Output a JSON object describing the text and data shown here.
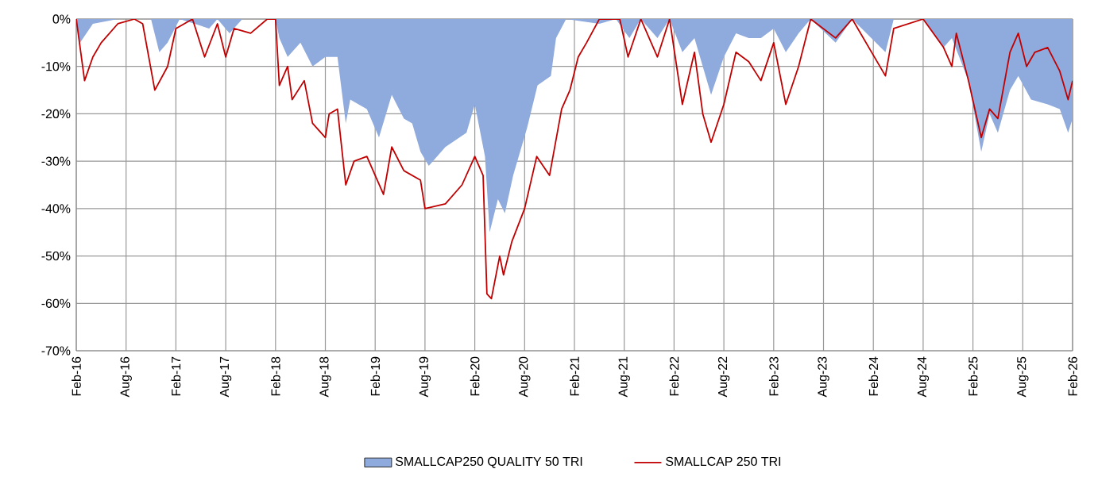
{
  "chart_data": {
    "type": "line",
    "xlim": [
      "2016-02",
      "2026-02"
    ],
    "ylim": [
      -70,
      0
    ],
    "xticks": [
      {
        "value": "2016-02",
        "label": "Feb-16"
      },
      {
        "value": "2016-08",
        "label": "Aug-16"
      },
      {
        "value": "2017-02",
        "label": "Feb-17"
      },
      {
        "value": "2017-08",
        "label": "Aug-17"
      },
      {
        "value": "2018-02",
        "label": "Feb-18"
      },
      {
        "value": "2018-08",
        "label": "Aug-18"
      },
      {
        "value": "2019-02",
        "label": "Feb-19"
      },
      {
        "value": "2019-08",
        "label": "Aug-19"
      },
      {
        "value": "2020-02",
        "label": "Feb-20"
      },
      {
        "value": "2020-08",
        "label": "Aug-20"
      },
      {
        "value": "2021-02",
        "label": "Feb-21"
      },
      {
        "value": "2021-08",
        "label": "Aug-21"
      },
      {
        "value": "2022-02",
        "label": "Feb-22"
      },
      {
        "value": "2022-08",
        "label": "Aug-22"
      },
      {
        "value": "2023-02",
        "label": "Feb-23"
      },
      {
        "value": "2023-08",
        "label": "Aug-23"
      },
      {
        "value": "2024-02",
        "label": "Feb-24"
      },
      {
        "value": "2024-08",
        "label": "Aug-24"
      },
      {
        "value": "2025-02",
        "label": "Feb-25"
      },
      {
        "value": "2025-08",
        "label": "Aug-25"
      },
      {
        "value": "2026-02",
        "label": "Feb-26"
      }
    ],
    "yticks": [
      {
        "value": 0,
        "label": "0%"
      },
      {
        "value": -10,
        "label": "-10%"
      },
      {
        "value": -20,
        "label": "-20%"
      },
      {
        "value": -30,
        "label": "-30%"
      },
      {
        "value": -40,
        "label": "-40%"
      },
      {
        "value": -50,
        "label": "-50%"
      },
      {
        "value": -60,
        "label": "-60%"
      },
      {
        "value": -70,
        "label": "-70%"
      }
    ],
    "grid": true,
    "legend": "bottom",
    "series": [
      {
        "name": "SMALLCAP250 QUALITY 50 TRI",
        "type": "area",
        "color": "#8faadc",
        "x": [
          "2016-02-01",
          "2016-02-15",
          "2016-04-01",
          "2016-07-01",
          "2016-11-01",
          "2016-12-01",
          "2017-01-01",
          "2017-02-15",
          "2017-06-01",
          "2017-07-01",
          "2017-08-15",
          "2017-10-01",
          "2018-02-01",
          "2018-02-15",
          "2018-03-15",
          "2018-05-01",
          "2018-06-15",
          "2018-08-01",
          "2018-09-15",
          "2018-10-15",
          "2018-11-01",
          "2019-01-01",
          "2019-02-15",
          "2019-04-01",
          "2019-05-15",
          "2019-06-15",
          "2019-07-15",
          "2019-08-15",
          "2019-10-15",
          "2020-01-01",
          "2020-02-01",
          "2020-03-08",
          "2020-03-25",
          "2020-04-25",
          "2020-05-20",
          "2020-06-20",
          "2020-08-10",
          "2020-09-18",
          "2020-11-06",
          "2020-11-25",
          "2021-01-01",
          "2021-05-01",
          "2021-07-01",
          "2021-08-20",
          "2021-10-01",
          "2021-12-01",
          "2022-01-15",
          "2022-03-01",
          "2022-04-15",
          "2022-06-15",
          "2022-08-01",
          "2022-09-15",
          "2022-11-01",
          "2022-12-15",
          "2023-02-01",
          "2023-03-15",
          "2023-05-01",
          "2023-06-15",
          "2023-09-15",
          "2023-11-15",
          "2024-03-15",
          "2024-04-15",
          "2024-08-01",
          "2024-10-15",
          "2024-11-15",
          "2025-01-15",
          "2025-03-01",
          "2025-04-01",
          "2025-05-01",
          "2025-06-15",
          "2025-07-15",
          "2025-09-01",
          "2025-11-01",
          "2025-12-15",
          "2026-01-15",
          "2026-02-01"
        ],
        "values": [
          0,
          -5,
          -1,
          0,
          0,
          -7,
          -5,
          0,
          -2,
          0,
          -3,
          0,
          0,
          -4,
          -8,
          -5,
          -10,
          -8,
          -8,
          -22,
          -17,
          -19,
          -25,
          -16,
          -21,
          -22,
          -28,
          -31,
          -27,
          -24,
          -18,
          -29,
          -45,
          -38,
          -41,
          -33,
          -23,
          -14,
          -12,
          -4,
          0,
          -1,
          0,
          -4,
          0,
          -4,
          0,
          -7,
          -4,
          -16,
          -8,
          -3,
          -4,
          -4,
          -2,
          -7,
          -3,
          0,
          -5,
          0,
          -7,
          0,
          0,
          -6,
          -4,
          -13,
          -28,
          -20,
          -24,
          -15,
          -12,
          -17,
          -18,
          -19,
          -24,
          -21
        ]
      },
      {
        "name": "SMALLCAP 250 TRI",
        "color": "#c00000",
        "x": [
          "2016-02-01",
          "2016-03-01",
          "2016-04-01",
          "2016-05-01",
          "2016-07-01",
          "2016-09-01",
          "2016-10-01",
          "2016-11-15",
          "2017-01-01",
          "2017-02-01",
          "2017-04-01",
          "2017-05-15",
          "2017-07-01",
          "2017-08-01",
          "2017-09-01",
          "2017-11-01",
          "2018-01-01",
          "2018-02-01",
          "2018-02-15",
          "2018-03-15",
          "2018-04-01",
          "2018-05-15",
          "2018-06-15",
          "2018-08-01",
          "2018-08-15",
          "2018-09-15",
          "2018-10-15",
          "2018-11-15",
          "2019-01-01",
          "2019-03-01",
          "2019-04-01",
          "2019-05-15",
          "2019-07-15",
          "2019-08-01",
          "2019-10-15",
          "2019-12-15",
          "2020-02-01",
          "2020-03-01",
          "2020-03-15",
          "2020-04-01",
          "2020-05-01",
          "2020-05-15",
          "2020-06-15",
          "2020-08-01",
          "2020-09-15",
          "2020-11-01",
          "2020-12-15",
          "2021-01-15",
          "2021-02-15",
          "2021-03-15",
          "2021-05-01",
          "2021-07-15",
          "2021-08-15",
          "2021-10-01",
          "2021-12-01",
          "2022-01-15",
          "2022-03-01",
          "2022-04-15",
          "2022-05-15",
          "2022-06-15",
          "2022-08-01",
          "2022-09-15",
          "2022-11-01",
          "2022-12-15",
          "2023-02-01",
          "2023-03-15",
          "2023-05-01",
          "2023-06-15",
          "2023-09-15",
          "2023-11-15",
          "2024-03-15",
          "2024-04-15",
          "2024-08-01",
          "2024-10-15",
          "2024-11-15",
          "2024-12-01",
          "2025-01-15",
          "2025-03-01",
          "2025-04-01",
          "2025-05-01",
          "2025-06-15",
          "2025-07-15",
          "2025-08-15",
          "2025-09-15",
          "2025-11-01",
          "2025-12-15",
          "2026-01-15",
          "2026-02-01"
        ],
        "values": [
          0,
          -13,
          -8,
          -5,
          -1,
          0,
          -1,
          -15,
          -10,
          -2,
          0,
          -8,
          -1,
          -8,
          -2,
          -3,
          0,
          0,
          -14,
          -10,
          -17,
          -13,
          -22,
          -25,
          -20,
          -19,
          -35,
          -30,
          -29,
          -37,
          -27,
          -32,
          -34,
          -40,
          -39,
          -35,
          -29,
          -33,
          -58,
          -59,
          -50,
          -54,
          -47,
          -40,
          -29,
          -33,
          -19,
          -15,
          -8,
          -5,
          0,
          0,
          -8,
          0,
          -8,
          0,
          -18,
          -7,
          -20,
          -26,
          -18,
          -7,
          -9,
          -13,
          -5,
          -18,
          -10,
          0,
          -4,
          0,
          -12,
          -2,
          0,
          -6,
          -10,
          -3,
          -13,
          -25,
          -19,
          -21,
          -7,
          -3,
          -10,
          -7,
          -6,
          -11,
          -17,
          -13
        ]
      }
    ]
  }
}
